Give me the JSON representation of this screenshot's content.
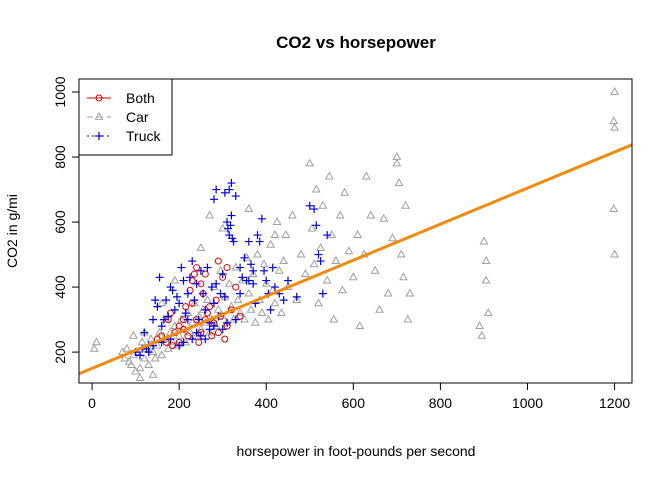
{
  "chart_data": {
    "type": "scatter",
    "title": "CO2 vs horsepower",
    "xlabel": "horsepower in foot-pounds per second",
    "ylabel": "CO2 in g/mi",
    "xlim": [
      -30,
      1240
    ],
    "ylim": [
      105,
      1040
    ],
    "x_ticks": [
      0,
      200,
      400,
      600,
      800,
      1000,
      1200
    ],
    "y_ticks": [
      200,
      400,
      600,
      800,
      1000
    ],
    "grid": false,
    "legend_position": "top-left",
    "colors": {
      "Both": "#dd0000",
      "Car": "#a0a0a0",
      "Truck": "#0000dd",
      "fit": "#f28a10"
    },
    "regression_line": {
      "intercept": 150,
      "slope": 0.5545
    },
    "series": [
      {
        "name": "Both",
        "marker": "circle",
        "points": [
          [
            150,
            240
          ],
          [
            160,
            250
          ],
          [
            175,
            300
          ],
          [
            180,
            320
          ],
          [
            190,
            260
          ],
          [
            200,
            280
          ],
          [
            210,
            300
          ],
          [
            215,
            340
          ],
          [
            220,
            250
          ],
          [
            225,
            390
          ],
          [
            230,
            420
          ],
          [
            235,
            440
          ],
          [
            240,
            300
          ],
          [
            245,
            230
          ],
          [
            250,
            260
          ],
          [
            255,
            380
          ],
          [
            260,
            300
          ],
          [
            265,
            320
          ],
          [
            270,
            340
          ],
          [
            275,
            250
          ],
          [
            280,
            290
          ],
          [
            285,
            360
          ],
          [
            290,
            260
          ],
          [
            295,
            310
          ],
          [
            300,
            430
          ],
          [
            305,
            240
          ],
          [
            310,
            280
          ],
          [
            200,
            230
          ],
          [
            185,
            220
          ],
          [
            240,
            460
          ],
          [
            260,
            440
          ],
          [
            290,
            480
          ],
          [
            320,
            330
          ],
          [
            330,
            400
          ],
          [
            340,
            310
          ],
          [
            310,
            460
          ],
          [
            230,
            350
          ],
          [
            210,
            270
          ],
          [
            170,
            230
          ],
          [
            250,
            410
          ]
        ]
      },
      {
        "name": "Car",
        "marker": "triangle",
        "points": [
          [
            5,
            210
          ],
          [
            10,
            230
          ],
          [
            70,
            200
          ],
          [
            75,
            180
          ],
          [
            80,
            210
          ],
          [
            90,
            160
          ],
          [
            95,
            190
          ],
          [
            100,
            140
          ],
          [
            105,
            200
          ],
          [
            110,
            150
          ],
          [
            115,
            230
          ],
          [
            120,
            180
          ],
          [
            125,
            210
          ],
          [
            130,
            160
          ],
          [
            135,
            240
          ],
          [
            140,
            200
          ],
          [
            145,
            180
          ],
          [
            150,
            220
          ],
          [
            155,
            260
          ],
          [
            160,
            190
          ],
          [
            165,
            240
          ],
          [
            170,
            300
          ],
          [
            175,
            210
          ],
          [
            180,
            260
          ],
          [
            185,
            230
          ],
          [
            190,
            280
          ],
          [
            195,
            220
          ],
          [
            200,
            250
          ],
          [
            205,
            300
          ],
          [
            210,
            270
          ],
          [
            215,
            230
          ],
          [
            220,
            320
          ],
          [
            225,
            260
          ],
          [
            230,
            290
          ],
          [
            235,
            350
          ],
          [
            240,
            250
          ],
          [
            245,
            310
          ],
          [
            250,
            270
          ],
          [
            255,
            330
          ],
          [
            260,
            290
          ],
          [
            265,
            360
          ],
          [
            270,
            260
          ],
          [
            275,
            300
          ],
          [
            280,
            400
          ],
          [
            285,
            280
          ],
          [
            290,
            330
          ],
          [
            295,
            450
          ],
          [
            300,
            310
          ],
          [
            305,
            370
          ],
          [
            310,
            290
          ],
          [
            315,
            410
          ],
          [
            320,
            340
          ],
          [
            325,
            300
          ],
          [
            330,
            460
          ],
          [
            335,
            360
          ],
          [
            340,
            320
          ],
          [
            345,
            420
          ],
          [
            350,
            300
          ],
          [
            355,
            490
          ],
          [
            360,
            380
          ],
          [
            365,
            330
          ],
          [
            370,
            440
          ],
          [
            375,
            290
          ],
          [
            380,
            500
          ],
          [
            385,
            360
          ],
          [
            390,
            320
          ],
          [
            395,
            470
          ],
          [
            400,
            410
          ],
          [
            405,
            300
          ],
          [
            410,
            530
          ],
          [
            415,
            390
          ],
          [
            420,
            350
          ],
          [
            425,
            600
          ],
          [
            430,
            450
          ],
          [
            435,
            320
          ],
          [
            440,
            480
          ],
          [
            445,
            560
          ],
          [
            450,
            400
          ],
          [
            460,
            620
          ],
          [
            470,
            360
          ],
          [
            480,
            500
          ],
          [
            490,
            440
          ],
          [
            500,
            780
          ],
          [
            505,
            580
          ],
          [
            510,
            470
          ],
          [
            515,
            700
          ],
          [
            520,
            350
          ],
          [
            525,
            520
          ],
          [
            530,
            650
          ],
          [
            540,
            420
          ],
          [
            545,
            740
          ],
          [
            550,
            560
          ],
          [
            555,
            300
          ],
          [
            560,
            480
          ],
          [
            570,
            620
          ],
          [
            575,
            390
          ],
          [
            580,
            690
          ],
          [
            590,
            510
          ],
          [
            600,
            430
          ],
          [
            610,
            560
          ],
          [
            615,
            280
          ],
          [
            625,
            500
          ],
          [
            630,
            740
          ],
          [
            640,
            620
          ],
          [
            650,
            450
          ],
          [
            660,
            330
          ],
          [
            670,
            610
          ],
          [
            680,
            380
          ],
          [
            690,
            550
          ],
          [
            700,
            800
          ],
          [
            700,
            780
          ],
          [
            705,
            720
          ],
          [
            710,
            500
          ],
          [
            715,
            430
          ],
          [
            720,
            650
          ],
          [
            725,
            300
          ],
          [
            730,
            380
          ],
          [
            900,
            540
          ],
          [
            905,
            480
          ],
          [
            905,
            420
          ],
          [
            910,
            320
          ],
          [
            890,
            280
          ],
          [
            895,
            250
          ],
          [
            1200,
            1000
          ],
          [
            1198,
            910
          ],
          [
            1200,
            890
          ],
          [
            1198,
            640
          ],
          [
            1200,
            500
          ],
          [
            270,
            620
          ],
          [
            360,
            640
          ],
          [
            300,
            580
          ],
          [
            420,
            560
          ],
          [
            250,
            520
          ],
          [
            190,
            420
          ],
          [
            160,
            350
          ],
          [
            120,
            260
          ],
          [
            95,
            250
          ],
          [
            85,
            170
          ],
          [
            140,
            130
          ],
          [
            110,
            120
          ]
        ]
      },
      {
        "name": "Truck",
        "marker": "plus",
        "points": [
          [
            100,
            200
          ],
          [
            110,
            190
          ],
          [
            120,
            260
          ],
          [
            125,
            210
          ],
          [
            130,
            220
          ],
          [
            140,
            300
          ],
          [
            145,
            360
          ],
          [
            150,
            340
          ],
          [
            155,
            430
          ],
          [
            160,
            280
          ],
          [
            165,
            300
          ],
          [
            170,
            360
          ],
          [
            175,
            310
          ],
          [
            180,
            400
          ],
          [
            185,
            390
          ],
          [
            190,
            330
          ],
          [
            195,
            370
          ],
          [
            200,
            350
          ],
          [
            205,
            460
          ],
          [
            210,
            420
          ],
          [
            215,
            320
          ],
          [
            220,
            380
          ],
          [
            225,
            430
          ],
          [
            230,
            480
          ],
          [
            235,
            360
          ],
          [
            240,
            410
          ],
          [
            245,
            300
          ],
          [
            250,
            450
          ],
          [
            255,
            380
          ],
          [
            260,
            330
          ],
          [
            265,
            460
          ],
          [
            270,
            290
          ],
          [
            275,
            400
          ],
          [
            280,
            350
          ],
          [
            285,
            410
          ],
          [
            290,
            310
          ],
          [
            295,
            380
          ],
          [
            300,
            440
          ],
          [
            305,
            370
          ],
          [
            310,
            600
          ],
          [
            312,
            580
          ],
          [
            315,
            560
          ],
          [
            318,
            590
          ],
          [
            320,
            620
          ],
          [
            322,
            550
          ],
          [
            325,
            540
          ],
          [
            315,
            700
          ],
          [
            320,
            720
          ],
          [
            305,
            690
          ],
          [
            285,
            700
          ],
          [
            280,
            670
          ],
          [
            330,
            680
          ],
          [
            340,
            460
          ],
          [
            345,
            430
          ],
          [
            350,
            490
          ],
          [
            355,
            420
          ],
          [
            360,
            540
          ],
          [
            365,
            470
          ],
          [
            370,
            410
          ],
          [
            375,
            350
          ],
          [
            380,
            560
          ],
          [
            385,
            540
          ],
          [
            390,
            610
          ],
          [
            395,
            450
          ],
          [
            400,
            420
          ],
          [
            405,
            380
          ],
          [
            410,
            330
          ],
          [
            415,
            460
          ],
          [
            420,
            400
          ],
          [
            430,
            380
          ],
          [
            440,
            360
          ],
          [
            450,
            420
          ],
          [
            470,
            370
          ],
          [
            500,
            650
          ],
          [
            510,
            640
          ],
          [
            520,
            500
          ],
          [
            515,
            590
          ],
          [
            525,
            480
          ],
          [
            530,
            380
          ],
          [
            540,
            560
          ],
          [
            200,
            220
          ],
          [
            210,
            230
          ],
          [
            260,
            240
          ],
          [
            270,
            270
          ],
          [
            280,
            280
          ],
          [
            250,
            250
          ],
          [
            230,
            240
          ],
          [
            360,
            420
          ],
          [
            370,
            450
          ],
          [
            340,
            380
          ],
          [
            330,
            300
          ],
          [
            310,
            290
          ],
          [
            300,
            270
          ],
          [
            240,
            260
          ],
          [
            220,
            300
          ],
          [
            180,
            240
          ],
          [
            160,
            230
          ],
          [
            140,
            220
          ],
          [
            130,
            200
          ],
          [
            115,
            210
          ]
        ]
      }
    ]
  }
}
